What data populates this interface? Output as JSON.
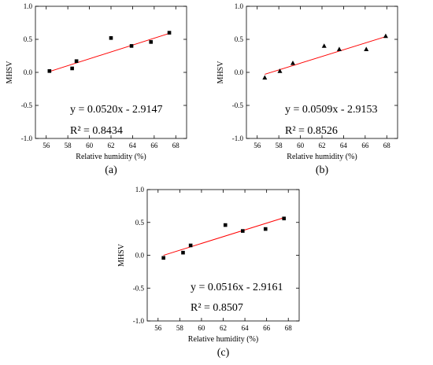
{
  "chart_data": [
    {
      "type": "scatter",
      "panel_label": "(a)",
      "xlabel": "Relative humidity (%)",
      "ylabel": "MHSV",
      "xlim": [
        55,
        69
      ],
      "ylim": [
        -1.0,
        1.0
      ],
      "x_ticks": [
        56,
        58,
        60,
        62,
        64,
        66,
        68
      ],
      "y_ticks": [
        -1.0,
        -0.5,
        0.0,
        0.5,
        1.0
      ],
      "marker": "square",
      "points": [
        {
          "x": 56.3,
          "y": 0.02
        },
        {
          "x": 58.4,
          "y": 0.06
        },
        {
          "x": 58.8,
          "y": 0.17
        },
        {
          "x": 62.0,
          "y": 0.52
        },
        {
          "x": 63.9,
          "y": 0.4
        },
        {
          "x": 65.7,
          "y": 0.46
        },
        {
          "x": 67.4,
          "y": 0.6
        }
      ],
      "fit": {
        "slope": 0.052,
        "intercept": -2.9147,
        "x_range": [
          56.3,
          67.4
        ],
        "color": "#ff0000"
      },
      "equation": "y = 0.0520x - 2.9147",
      "r2": "R² = 0.8434"
    },
    {
      "type": "scatter",
      "panel_label": "(b)",
      "xlabel": "Relative humidity (%)",
      "ylabel": "MHSV",
      "xlim": [
        55,
        69
      ],
      "ylim": [
        -1.0,
        1.0
      ],
      "x_ticks": [
        56,
        58,
        60,
        62,
        64,
        66,
        68
      ],
      "y_ticks": [
        -1.0,
        -0.5,
        0.0,
        0.5,
        1.0
      ],
      "marker": "triangle",
      "points": [
        {
          "x": 56.7,
          "y": -0.08
        },
        {
          "x": 58.1,
          "y": 0.02
        },
        {
          "x": 59.3,
          "y": 0.14
        },
        {
          "x": 62.2,
          "y": 0.4
        },
        {
          "x": 63.6,
          "y": 0.35
        },
        {
          "x": 66.1,
          "y": 0.35
        },
        {
          "x": 67.9,
          "y": 0.55
        }
      ],
      "fit": {
        "slope": 0.0509,
        "intercept": -2.9153,
        "x_range": [
          56.7,
          67.9
        ],
        "color": "#ff0000"
      },
      "equation": "y = 0.0509x - 2.9153",
      "r2": "R² = 0.8526"
    },
    {
      "type": "scatter",
      "panel_label": "(c)",
      "xlabel": "Relative humidity (%)",
      "ylabel": "MHSV",
      "xlim": [
        55,
        69
      ],
      "ylim": [
        -1.0,
        1.0
      ],
      "x_ticks": [
        56,
        58,
        60,
        62,
        64,
        66,
        68
      ],
      "y_ticks": [
        -1.0,
        -0.5,
        0.0,
        0.5,
        1.0
      ],
      "marker": "square",
      "points": [
        {
          "x": 56.5,
          "y": -0.04
        },
        {
          "x": 58.3,
          "y": 0.04
        },
        {
          "x": 59.0,
          "y": 0.15
        },
        {
          "x": 62.2,
          "y": 0.46
        },
        {
          "x": 63.8,
          "y": 0.37
        },
        {
          "x": 65.9,
          "y": 0.4
        },
        {
          "x": 67.6,
          "y": 0.56
        }
      ],
      "fit": {
        "slope": 0.0516,
        "intercept": -2.9161,
        "x_range": [
          56.5,
          67.6
        ],
        "color": "#ff0000"
      },
      "equation": "y = 0.0516x - 2.9161",
      "r2": "R² = 0.8507"
    }
  ]
}
